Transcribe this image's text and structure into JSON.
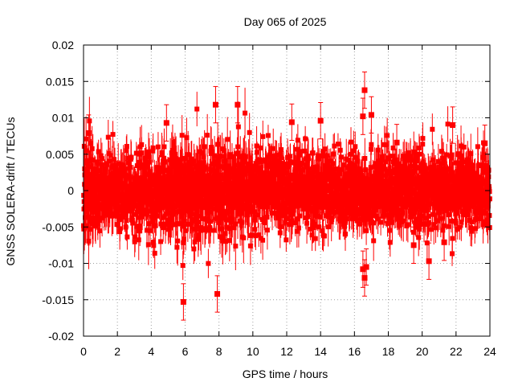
{
  "chart_data": {
    "type": "scatter",
    "title": "Day 065 of 2025",
    "xlabel": "GPS time / hours",
    "ylabel": "GNSS SOLERA-drift / TECUs",
    "xlim": [
      0,
      24
    ],
    "ylim": [
      -0.02,
      0.02
    ],
    "xticks": [
      "0",
      "2",
      "4",
      "6",
      "8",
      "10",
      "12",
      "14",
      "16",
      "18",
      "20",
      "22",
      "24"
    ],
    "yticks": [
      "-0.02",
      "-0.015",
      "-0.01",
      "-0.005",
      "0",
      "0.005",
      "0.01",
      "0.015",
      "0.02"
    ],
    "grid": true,
    "series_color": "#ff0000",
    "sampling_interval_hours": 0.0083,
    "noise_std": 0.003,
    "outliers": [
      {
        "x": 5.9,
        "y": -0.0153
      },
      {
        "x": 7.9,
        "y": -0.0142
      },
      {
        "x": 7.8,
        "y": 0.0118
      },
      {
        "x": 9.1,
        "y": 0.0118
      },
      {
        "x": 16.6,
        "y": 0.0138
      },
      {
        "x": 16.5,
        "y": 0.0102
      },
      {
        "x": 17.0,
        "y": 0.0104
      },
      {
        "x": 14.0,
        "y": 0.0096
      },
      {
        "x": 16.5,
        "y": -0.0108
      },
      {
        "x": 16.7,
        "y": -0.0105
      },
      {
        "x": 16.6,
        "y": -0.012
      },
      {
        "x": 20.4,
        "y": -0.0097
      },
      {
        "x": 4.9,
        "y": 0.0093
      },
      {
        "x": 12.3,
        "y": 0.0094
      },
      {
        "x": 21.8,
        "y": 0.009
      },
      {
        "x": 0.3,
        "y": 0.0079
      },
      {
        "x": 18.5,
        "y": 0.0066
      },
      {
        "x": 23.7,
        "y": 0.0065
      },
      {
        "x": 19.5,
        "y": -0.0075
      },
      {
        "x": 21.3,
        "y": -0.0071
      }
    ]
  }
}
